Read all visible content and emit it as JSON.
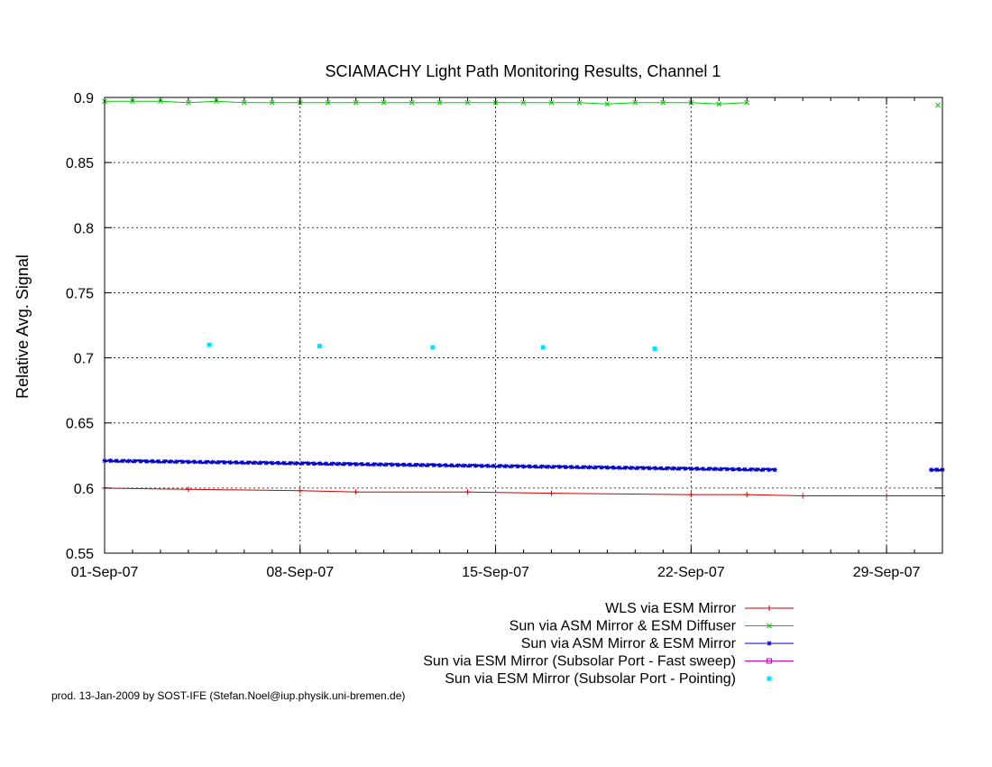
{
  "chart_data": {
    "type": "line",
    "title": "SCIAMACHY Light Path Monitoring Results, Channel 1",
    "ylabel": "Relative Avg. Signal",
    "xlabel": "",
    "x_axis": {
      "type": "date",
      "range": [
        "2007-09-01",
        "2007-10-01"
      ],
      "tick_labels": [
        "01-Sep-07",
        "08-Sep-07",
        "15-Sep-07",
        "22-Sep-07",
        "29-Sep-07"
      ],
      "tick_dates": [
        "2007-09-01",
        "2007-09-08",
        "2007-09-15",
        "2007-09-22",
        "2007-09-29"
      ]
    },
    "y_axis": {
      "range": [
        0.55,
        0.9
      ],
      "tick_values": [
        0.55,
        0.6,
        0.65,
        0.7,
        0.75,
        0.8,
        0.85,
        0.9
      ],
      "tick_labels": [
        "0.55",
        "0.6",
        "0.65",
        "0.7",
        "0.75",
        "0.8",
        "0.85",
        "0.9"
      ]
    },
    "grid": true,
    "legend_position": "bottom-right",
    "series": [
      {
        "name": "WLS via ESM Mirror",
        "color": "#cc0000",
        "marker": "plus",
        "style": "line",
        "points": [
          [
            "2007-09-01",
            0.6
          ],
          [
            "2007-09-04",
            0.599
          ],
          [
            "2007-09-08",
            0.598
          ],
          [
            "2007-09-10",
            0.597
          ],
          [
            "2007-09-14",
            0.597
          ],
          [
            "2007-09-17",
            0.596
          ],
          [
            "2007-09-22",
            0.595
          ],
          [
            "2007-09-24",
            0.595
          ],
          [
            "2007-09-26",
            0.594
          ],
          [
            "2007-09-29",
            0.594
          ],
          [
            "2007-10-01",
            0.594
          ]
        ]
      },
      {
        "name": "Sun via ASM Mirror & ESM Diffuser",
        "color": "#00cc00",
        "marker": "x",
        "style": "line",
        "points": [
          [
            "2007-09-01",
            0.897
          ],
          [
            "2007-09-02",
            0.897
          ],
          [
            "2007-09-03",
            0.897
          ],
          [
            "2007-09-04",
            0.896
          ],
          [
            "2007-09-05",
            0.897
          ],
          [
            "2007-09-06",
            0.896
          ],
          [
            "2007-09-07",
            0.896
          ],
          [
            "2007-09-08",
            0.896
          ],
          [
            "2007-09-09",
            0.896
          ],
          [
            "2007-09-10",
            0.896
          ],
          [
            "2007-09-11",
            0.896
          ],
          [
            "2007-09-12",
            0.896
          ],
          [
            "2007-09-13",
            0.896
          ],
          [
            "2007-09-14",
            0.896
          ],
          [
            "2007-09-15",
            0.896
          ],
          [
            "2007-09-16",
            0.896
          ],
          [
            "2007-09-17",
            0.896
          ],
          [
            "2007-09-18",
            0.896
          ],
          [
            "2007-09-19",
            0.895
          ],
          [
            "2007-09-20",
            0.896
          ],
          [
            "2007-09-21",
            0.896
          ],
          [
            "2007-09-22",
            0.896
          ],
          [
            "2007-09-23",
            0.895
          ],
          [
            "2007-09-24",
            0.896
          ]
        ],
        "extra_points": [
          [
            "2007-10-01",
            0.894
          ]
        ]
      },
      {
        "name": "Sun via ASM Mirror & ESM Mirror",
        "color": "#0000cc",
        "marker": "star",
        "style": "dense",
        "segments": [
          {
            "start": "2007-09-01",
            "end": "2007-09-25",
            "y_start": 0.621,
            "y_end": 0.614
          },
          {
            "start": "2007-09-30.6",
            "end": "2007-10-01",
            "y_start": 0.614,
            "y_end": 0.614
          }
        ]
      },
      {
        "name": "Sun via ESM Mirror (Subsolar Port - Fast sweep)",
        "color": "#cc00cc",
        "marker": "square-open",
        "style": "line",
        "points": []
      },
      {
        "name": "Sun via ESM Mirror (Subsolar Port - Pointing)",
        "color": "#00e5ff",
        "marker": "square",
        "style": "points",
        "points": [
          [
            "2007-09-04.75",
            0.71
          ],
          [
            "2007-09-08.7",
            0.709
          ],
          [
            "2007-09-12.75",
            0.708
          ],
          [
            "2007-09-16.7",
            0.708
          ],
          [
            "2007-09-20.7",
            0.707
          ]
        ]
      }
    ]
  },
  "footer": "prod. 13-Jan-2009 by SOST-IFE (Stefan.Noel@iup.physik.uni-bremen.de)"
}
